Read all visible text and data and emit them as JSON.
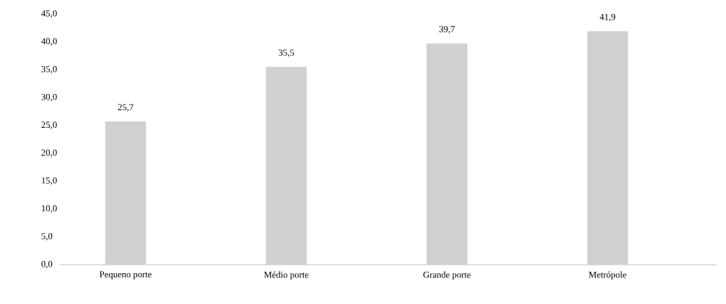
{
  "chart_data": {
    "type": "bar",
    "categories": [
      "Pequeno porte",
      "Médio porte",
      "Grande porte",
      "Metrópole"
    ],
    "values": [
      25.7,
      35.5,
      39.7,
      41.9
    ],
    "value_labels": [
      "25,7",
      "35,5",
      "39,7",
      "41,9"
    ],
    "color": "#d0d0d0",
    "ylim": [
      0,
      45
    ],
    "yticks": [
      {
        "value": 0,
        "label": "0,0"
      },
      {
        "value": 5,
        "label": "5,0"
      },
      {
        "value": 10,
        "label": "10,0"
      },
      {
        "value": 15,
        "label": "15,0"
      },
      {
        "value": 20,
        "label": "20,0"
      },
      {
        "value": 25,
        "label": "25,0"
      },
      {
        "value": 30,
        "label": "30,0"
      },
      {
        "value": 35,
        "label": "35,0"
      },
      {
        "value": 40,
        "label": "40,0"
      },
      {
        "value": 45,
        "label": "45,0"
      }
    ]
  }
}
